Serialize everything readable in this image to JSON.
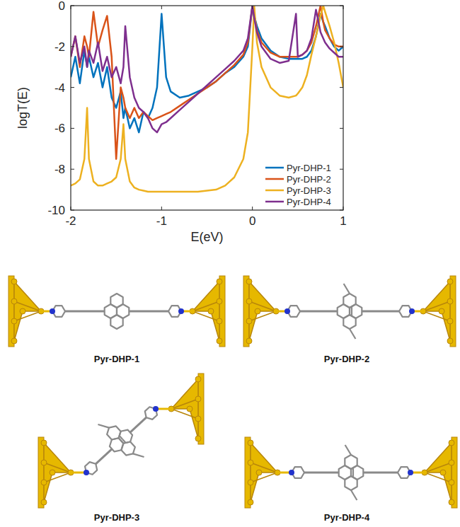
{
  "chart_data": {
    "type": "line",
    "x_label": "E(eV)",
    "y_label": "logT(E)",
    "x": [
      -2,
      -1.95,
      -1.9,
      -1.85,
      -1.82,
      -1.8,
      -1.75,
      -1.7,
      -1.65,
      -1.6,
      -1.55,
      -1.5,
      -1.45,
      -1.42,
      -1.4,
      -1.35,
      -1.3,
      -1.25,
      -1.2,
      -1.15,
      -1.1,
      -1.05,
      -1,
      -0.95,
      -0.9,
      -0.8,
      -0.7,
      -0.6,
      -0.5,
      -0.4,
      -0.3,
      -0.2,
      -0.1,
      -0.05,
      0,
      0.02,
      0.05,
      0.1,
      0.2,
      0.3,
      0.4,
      0.48,
      0.5,
      0.55,
      0.6,
      0.65,
      0.7,
      0.75,
      0.78,
      0.8,
      0.85,
      0.9,
      0.95,
      1
    ],
    "series": [
      {
        "name": "Pyr-DHP-1",
        "color": "#0072BD",
        "values": [
          -3.5,
          -2.5,
          -3.8,
          -2.2,
          -3,
          -2.5,
          -3.5,
          -2.8,
          -4,
          -3,
          -4.5,
          -5,
          -4.2,
          -5.5,
          -5,
          -6,
          -5.5,
          -6.2,
          -5.2,
          -5.5,
          -5,
          -4,
          -0.4,
          -3.5,
          -4.2,
          -4.5,
          -4.4,
          -4.2,
          -4,
          -3.7,
          -3.3,
          -3,
          -2.5,
          -2,
          0,
          -0.5,
          -1,
          -1.6,
          -2.2,
          -2.5,
          -2.6,
          -2.6,
          -2.6,
          -2.6,
          -2.5,
          -2.2,
          -1.5,
          -0.4,
          -0.8,
          -1,
          -1.6,
          -2,
          -2.2,
          -2
        ]
      },
      {
        "name": "Pyr-DHP-2",
        "color": "#D95319",
        "values": [
          -2.5,
          -1.5,
          -3,
          -1.5,
          -2,
          -2.5,
          -0.3,
          -2,
          -1.2,
          -0.5,
          -2.5,
          -7.5,
          -4,
          -4.5,
          -5,
          -5.5,
          -5,
          -5.5,
          -5.2,
          -5.4,
          -5.6,
          -5.5,
          -5.4,
          -5.3,
          -5.2,
          -4.9,
          -4.6,
          -4.3,
          -4,
          -3.7,
          -3.3,
          -2.9,
          -2.4,
          -1.8,
          0,
          -0.5,
          -1.2,
          -1.8,
          -2.3,
          -2.5,
          -2.5,
          -2.5,
          -2.5,
          -2.4,
          -2.2,
          -1.8,
          -1,
          0,
          -0.8,
          -1.2,
          -1.6,
          -1.9,
          -2,
          -2
        ]
      },
      {
        "name": "Pyr-DHP-3",
        "color": "#EDB120",
        "values": [
          -8.8,
          -8.7,
          -8.5,
          -7.5,
          -5,
          -7.5,
          -8.6,
          -8.8,
          -8.8,
          -8.7,
          -8.6,
          -8.4,
          -7.5,
          -5.8,
          -7.5,
          -8.6,
          -8.9,
          -9,
          -9.05,
          -9.1,
          -9.1,
          -9.1,
          -9.1,
          -9.1,
          -9.1,
          -9.1,
          -9.1,
          -9.1,
          -9.05,
          -9,
          -8.8,
          -8.4,
          -7.5,
          -6.2,
          -2,
          0,
          -1.8,
          -3,
          -4,
          -4.4,
          -4.5,
          -4.4,
          -4.3,
          -4,
          -3.4,
          -2.4,
          -1.5,
          -0.5,
          0,
          -0.3,
          -1,
          -1.8,
          -2.8,
          -4
        ]
      },
      {
        "name": "Pyr-DHP-4",
        "color": "#7E2F8E",
        "values": [
          -2.5,
          -1.5,
          -2.8,
          -2,
          -3,
          -2.2,
          -2.8,
          -1.8,
          -3.2,
          -2.5,
          -3.5,
          -3,
          -3.8,
          -3,
          -1,
          -3.5,
          -4.5,
          -5,
          -5.2,
          -5.5,
          -6,
          -6.2,
          -5.8,
          -5.7,
          -5.5,
          -5.1,
          -4.7,
          -4.3,
          -3.9,
          -3.5,
          -3.1,
          -2.7,
          -2.2,
          -1.6,
          0,
          -0.6,
          -1.3,
          -2,
          -2.6,
          -2.8,
          -2.7,
          -0.4,
          -2.5,
          -2.4,
          -2.2,
          -1.6,
          -0.2,
          -1.3,
          -1.6,
          -1.8,
          -2.1,
          -2.3,
          -2.5,
          -2.5
        ]
      }
    ],
    "xlim": [
      -2,
      1
    ],
    "xticks": [
      -2,
      -1,
      0,
      1
    ],
    "ylim": [
      -10,
      0
    ],
    "yticks": [
      -10,
      -8,
      -6,
      -4,
      -2,
      0
    ],
    "grid": false,
    "legend": "southeast"
  },
  "structures": {
    "labels": [
      "Pyr-DHP-1",
      "Pyr-DHP-2",
      "Pyr-DHP-3",
      "Pyr-DHP-4"
    ]
  }
}
